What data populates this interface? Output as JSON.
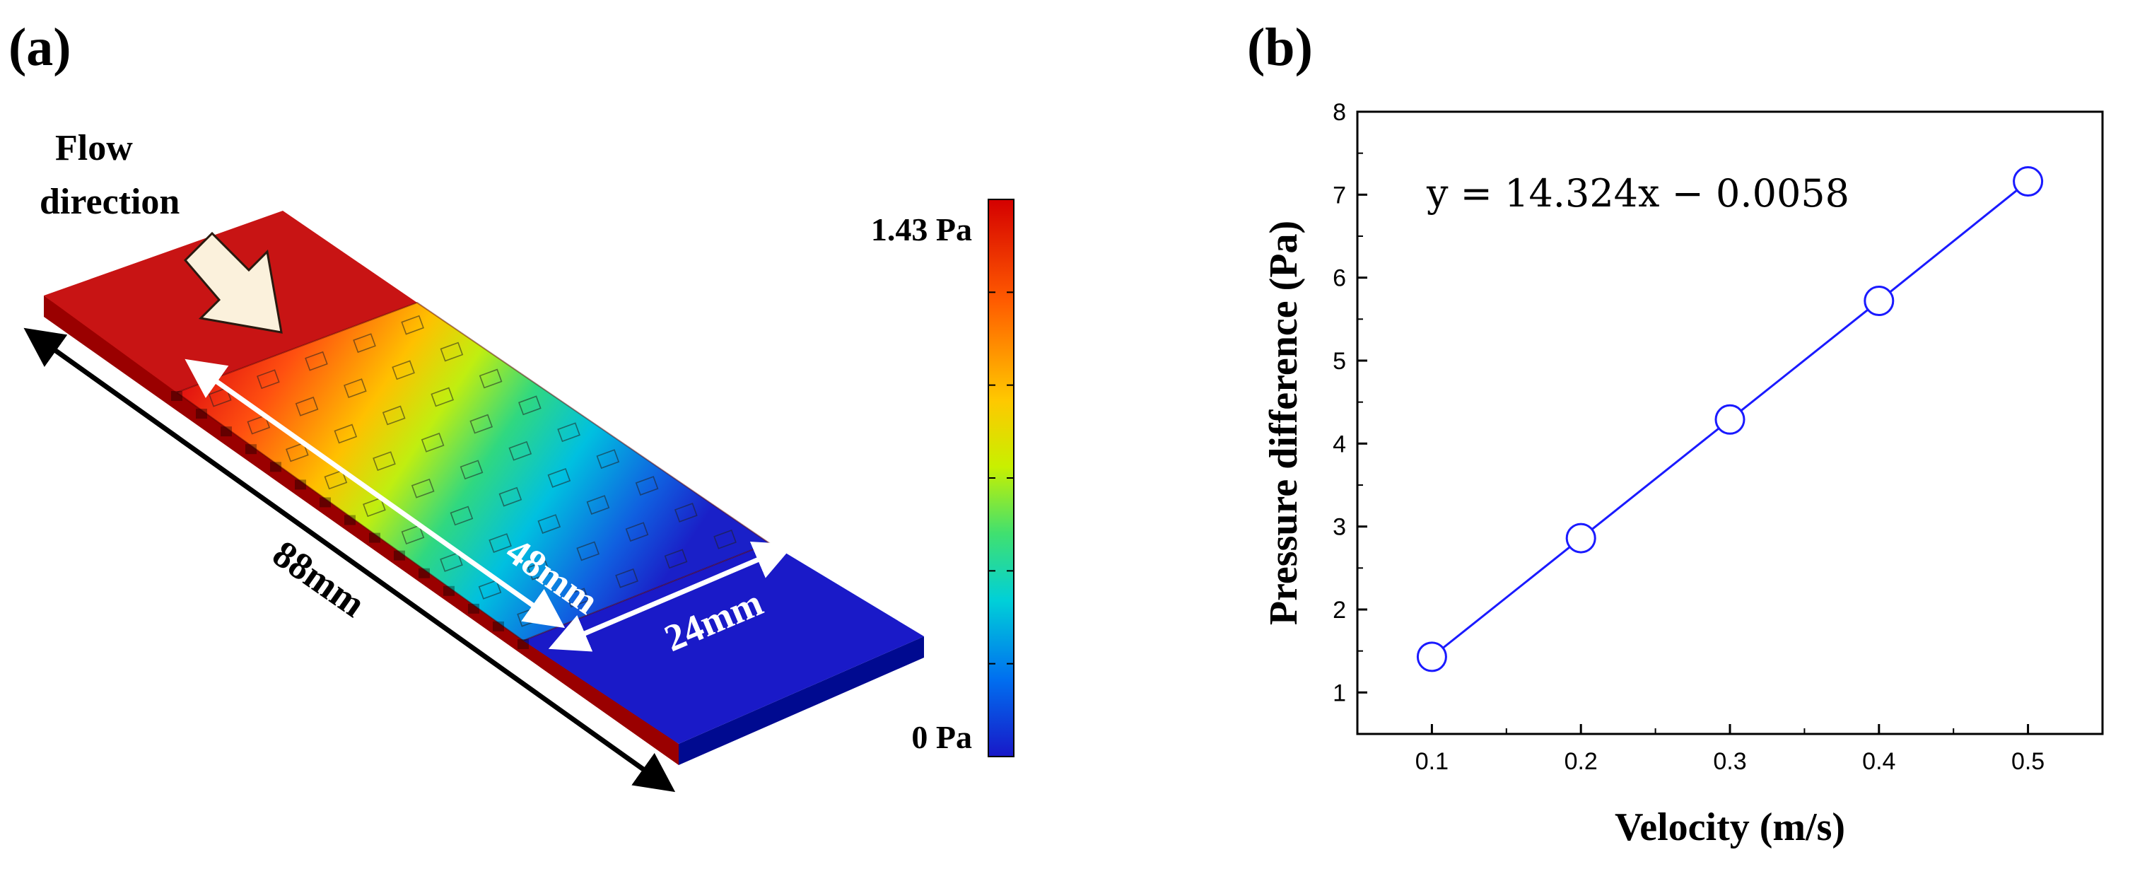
{
  "panel_a": {
    "label": "(a)",
    "flow_label_line1": "Flow",
    "flow_label_line2": "direction",
    "dim_total": "88mm",
    "dim_patch_length": "48mm",
    "dim_patch_width": "24mm",
    "colorbar_max": "1.43 Pa",
    "colorbar_min": "0 Pa",
    "colors": {
      "high": "#c81414",
      "mid": "#f0e000",
      "low": "#1a1ac8"
    }
  },
  "panel_b": {
    "label": "(b)",
    "equation": "y = 14.324x − 0.0058"
  },
  "chart_data": {
    "type": "line",
    "x": [
      0.1,
      0.2,
      0.3,
      0.4,
      0.5
    ],
    "series": [
      {
        "name": "Pressure difference",
        "values": [
          1.43,
          2.86,
          4.29,
          5.72,
          7.16
        ],
        "color": "#1a1aff"
      }
    ],
    "xlabel": "Velocity (m/s)",
    "ylabel": "Pressure difference (Pa)",
    "xlim": [
      0.05,
      0.55
    ],
    "ylim": [
      0.5,
      8
    ],
    "xticks": [
      "0.1",
      "0.2",
      "0.3",
      "0.4",
      "0.5"
    ],
    "yticks": [
      "1",
      "2",
      "3",
      "4",
      "5",
      "6",
      "7",
      "8"
    ],
    "grid": false,
    "annotation": "y = 14.324x − 0.0058"
  }
}
